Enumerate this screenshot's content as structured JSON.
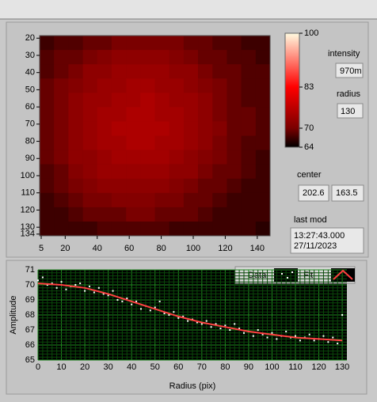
{
  "chart_data": [
    {
      "type": "heatmap",
      "xlim": [
        4,
        148
      ],
      "ylim": [
        18.5,
        135
      ],
      "xticks": [
        5,
        20,
        40,
        60,
        80,
        100,
        120,
        140
      ],
      "yticks": [
        20,
        30,
        40,
        50,
        60,
        70,
        80,
        90,
        100,
        110,
        120,
        130,
        134
      ],
      "zlim": [
        64,
        100
      ],
      "zticks": [
        64,
        70,
        83,
        100
      ],
      "colors": [
        "#000000",
        "#7a0000",
        "#ff0000",
        "#fffbe0"
      ],
      "values": [
        [
          67,
          68,
          68,
          69,
          69,
          70,
          70,
          70,
          70,
          70,
          69,
          69,
          68,
          68,
          67,
          67
        ],
        [
          68,
          69,
          69,
          70,
          71,
          72,
          72,
          72,
          72,
          71,
          70,
          69,
          69,
          68,
          68,
          67
        ],
        [
          68,
          69,
          70,
          72,
          72,
          73,
          73,
          73,
          73,
          72,
          72,
          70,
          69,
          69,
          68,
          68
        ],
        [
          69,
          70,
          71,
          72,
          73,
          73,
          74,
          74,
          73,
          73,
          72,
          71,
          70,
          69,
          68,
          68
        ],
        [
          69,
          70,
          72,
          73,
          73,
          74,
          74,
          75,
          74,
          73,
          73,
          72,
          70,
          69,
          68,
          68
        ],
        [
          69,
          70,
          72,
          73,
          74,
          74,
          75,
          75,
          74,
          74,
          73,
          72,
          70,
          69,
          69,
          68
        ],
        [
          69,
          70,
          72,
          73,
          74,
          75,
          75,
          75,
          75,
          74,
          73,
          72,
          71,
          69,
          69,
          68
        ],
        [
          69,
          70,
          72,
          73,
          74,
          74,
          75,
          75,
          74,
          74,
          73,
          72,
          70,
          69,
          68,
          68
        ],
        [
          69,
          70,
          72,
          72,
          73,
          74,
          74,
          74,
          74,
          73,
          72,
          71,
          70,
          69,
          68,
          67
        ],
        [
          68,
          69,
          71,
          72,
          73,
          73,
          73,
          73,
          73,
          72,
          72,
          70,
          69,
          69,
          68,
          67
        ],
        [
          68,
          69,
          70,
          71,
          72,
          72,
          72,
          72,
          72,
          71,
          70,
          69,
          69,
          68,
          67,
          67
        ],
        [
          67,
          68,
          69,
          70,
          70,
          71,
          71,
          71,
          70,
          70,
          69,
          69,
          68,
          67,
          67,
          67
        ],
        [
          67,
          67,
          68,
          69,
          69,
          69,
          70,
          70,
          69,
          69,
          69,
          68,
          67,
          67,
          67,
          67
        ],
        [
          67,
          67,
          67,
          67,
          68,
          68,
          68,
          68,
          68,
          67,
          67,
          67,
          67,
          67,
          67,
          66
        ]
      ]
    },
    {
      "type": "scatter-fit",
      "xlabel": "Radius (pix)",
      "ylabel": "Amplitude",
      "xlim": [
        0,
        132
      ],
      "ylim": [
        65,
        71
      ],
      "xticks": [
        0,
        10,
        20,
        30,
        40,
        50,
        60,
        70,
        80,
        90,
        100,
        110,
        120,
        130
      ],
      "yticks": [
        65,
        66,
        67,
        68,
        69,
        70,
        71
      ],
      "grid": true,
      "legend": "top-right",
      "series": [
        {
          "name": "Data",
          "color": "#ffffff",
          "x": [
            0,
            2,
            4,
            6,
            8,
            10,
            12,
            14,
            16,
            18,
            20,
            22,
            24,
            26,
            28,
            30,
            32,
            34,
            36,
            38,
            40,
            42,
            44,
            46,
            48,
            50,
            52,
            54,
            56,
            58,
            60,
            62,
            64,
            66,
            68,
            70,
            72,
            74,
            76,
            78,
            80,
            82,
            84,
            86,
            88,
            90,
            92,
            94,
            96,
            98,
            100,
            102,
            104,
            106,
            108,
            110,
            112,
            114,
            116,
            118,
            120,
            122,
            124,
            126,
            128,
            130
          ],
          "values": [
            70.3,
            70.5,
            70.0,
            70.1,
            69.8,
            70.2,
            69.7,
            69.9,
            70.0,
            70.1,
            69.6,
            69.9,
            69.5,
            69.8,
            69.4,
            69.3,
            69.6,
            69.0,
            68.9,
            69.1,
            68.7,
            68.9,
            68.4,
            68.6,
            68.3,
            68.5,
            68.9,
            68.1,
            68.0,
            68.2,
            67.8,
            67.9,
            67.6,
            67.7,
            67.5,
            67.4,
            67.6,
            67.2,
            67.4,
            67.1,
            67.3,
            67.0,
            67.4,
            67.1,
            66.8,
            66.9,
            66.6,
            67.0,
            66.7,
            66.5,
            66.8,
            66.4,
            66.6,
            66.9,
            66.5,
            66.6,
            66.3,
            66.5,
            66.7,
            66.3,
            66.4,
            66.6,
            66.2,
            66.5,
            66.1,
            68.0
          ]
        },
        {
          "name": "Fit",
          "color": "#ff4040",
          "x": [
            0,
            10,
            20,
            30,
            40,
            50,
            60,
            70,
            80,
            90,
            100,
            110,
            120,
            130
          ],
          "values": [
            70.1,
            70.0,
            69.8,
            69.4,
            68.9,
            68.4,
            67.9,
            67.5,
            67.2,
            66.9,
            66.7,
            66.5,
            66.4,
            66.3
          ]
        }
      ]
    }
  ],
  "controls": {
    "intensity": {
      "label": "intensity",
      "value": "970m"
    },
    "radius": {
      "label": "radius",
      "value": "130"
    },
    "center": {
      "label": "center",
      "values": [
        "202.6",
        "163.5"
      ]
    },
    "last_mod": {
      "label": "last mod",
      "lines": [
        "13:27:43.000",
        "27/11/2023"
      ]
    }
  }
}
